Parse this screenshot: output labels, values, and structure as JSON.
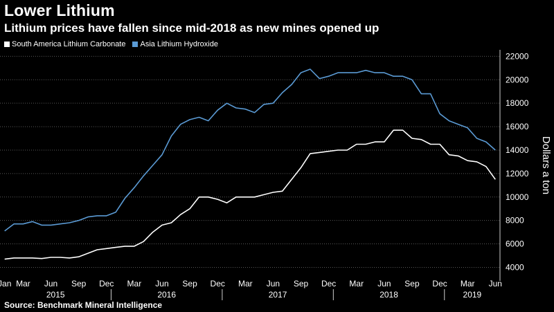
{
  "title": "Lower Lithium",
  "subtitle": "Lithium prices have fallen since mid-2018 as new mines opened up",
  "source": "Source: Benchmark Mineral Intelligence",
  "colors": {
    "background": "#000000",
    "carbonate": "#ffffff",
    "hydroxide": "#5b9bd5",
    "grid": "#5a5a5a"
  },
  "chart_data": {
    "type": "line",
    "title": "Lower Lithium",
    "subtitle": "Lithium prices have fallen since mid-2018 as new mines opened up",
    "ylabel": "Dollars a ton",
    "xlabel": "",
    "ylim": [
      3200,
      22200
    ],
    "yticks": [
      4000,
      6000,
      8000,
      10000,
      12000,
      14000,
      16000,
      18000,
      20000,
      22000
    ],
    "ytick_labels": [
      "4000",
      "6000",
      "8000",
      "10000",
      "12000",
      "14000",
      "16000",
      "18000",
      "20000",
      "22000"
    ],
    "x_start": "2015-01",
    "x_months": 54,
    "month_ticks": [
      {
        "label": "Jan",
        "month": 0
      },
      {
        "label": "Mar",
        "month": 2
      },
      {
        "label": "Jun",
        "month": 5
      },
      {
        "label": "Sep",
        "month": 8
      },
      {
        "label": "Dec",
        "month": 11
      },
      {
        "label": "Mar",
        "month": 14
      },
      {
        "label": "Jun",
        "month": 17
      },
      {
        "label": "Sep",
        "month": 20
      },
      {
        "label": "Dec",
        "month": 23
      },
      {
        "label": "Mar",
        "month": 26
      },
      {
        "label": "Jun",
        "month": 29
      },
      {
        "label": "Sep",
        "month": 32
      },
      {
        "label": "Dec",
        "month": 35
      },
      {
        "label": "Mar",
        "month": 38
      },
      {
        "label": "Jun",
        "month": 41
      },
      {
        "label": "Sep",
        "month": 44
      },
      {
        "label": "Dec",
        "month": 47
      },
      {
        "label": "Mar",
        "month": 50
      },
      {
        "label": "Jun",
        "month": 53
      }
    ],
    "year_labels": [
      {
        "label": "2015",
        "month": 5.5
      },
      {
        "label": "2016",
        "month": 17.5
      },
      {
        "label": "2017",
        "month": 29.5
      },
      {
        "label": "2018",
        "month": 41.5
      },
      {
        "label": "2019",
        "month": 50.5
      }
    ],
    "year_boundaries": [
      11.5,
      23.5,
      35.5,
      47.5
    ],
    "grid": true,
    "legend": "top-left",
    "series": [
      {
        "name": "South America Lithium Carbonate",
        "color": "#ffffff",
        "values": [
          4700,
          4800,
          4800,
          4800,
          4750,
          4850,
          4850,
          4800,
          4900,
          5200,
          5500,
          5600,
          5700,
          5800,
          5800,
          6200,
          7000,
          7600,
          7800,
          8500,
          9000,
          10000,
          10000,
          9800,
          9500,
          10000,
          10000,
          10000,
          10200,
          10400,
          10500,
          11500,
          12500,
          13700,
          13800,
          13900,
          14000,
          14000,
          14500,
          14500,
          14700,
          14700,
          15700,
          15700,
          15000,
          14900,
          14500,
          14500,
          13600,
          13500,
          13100,
          13000,
          12600,
          11500
        ]
      },
      {
        "name": "Asia Lithium Hydroxide",
        "color": "#5b9bd5",
        "values": [
          7100,
          7700,
          7700,
          7900,
          7600,
          7600,
          7700,
          7800,
          8000,
          8300,
          8400,
          8400,
          8700,
          9900,
          10800,
          11800,
          12700,
          13600,
          15200,
          16200,
          16600,
          16800,
          16500,
          17400,
          18000,
          17600,
          17500,
          17200,
          17900,
          18000,
          18900,
          19600,
          20600,
          20900,
          20100,
          20300,
          20600,
          20600,
          20600,
          20800,
          20600,
          20600,
          20300,
          20300,
          20000,
          18800,
          18800,
          17100,
          16500,
          16200,
          15900,
          15000,
          14700,
          14000
        ]
      }
    ]
  }
}
